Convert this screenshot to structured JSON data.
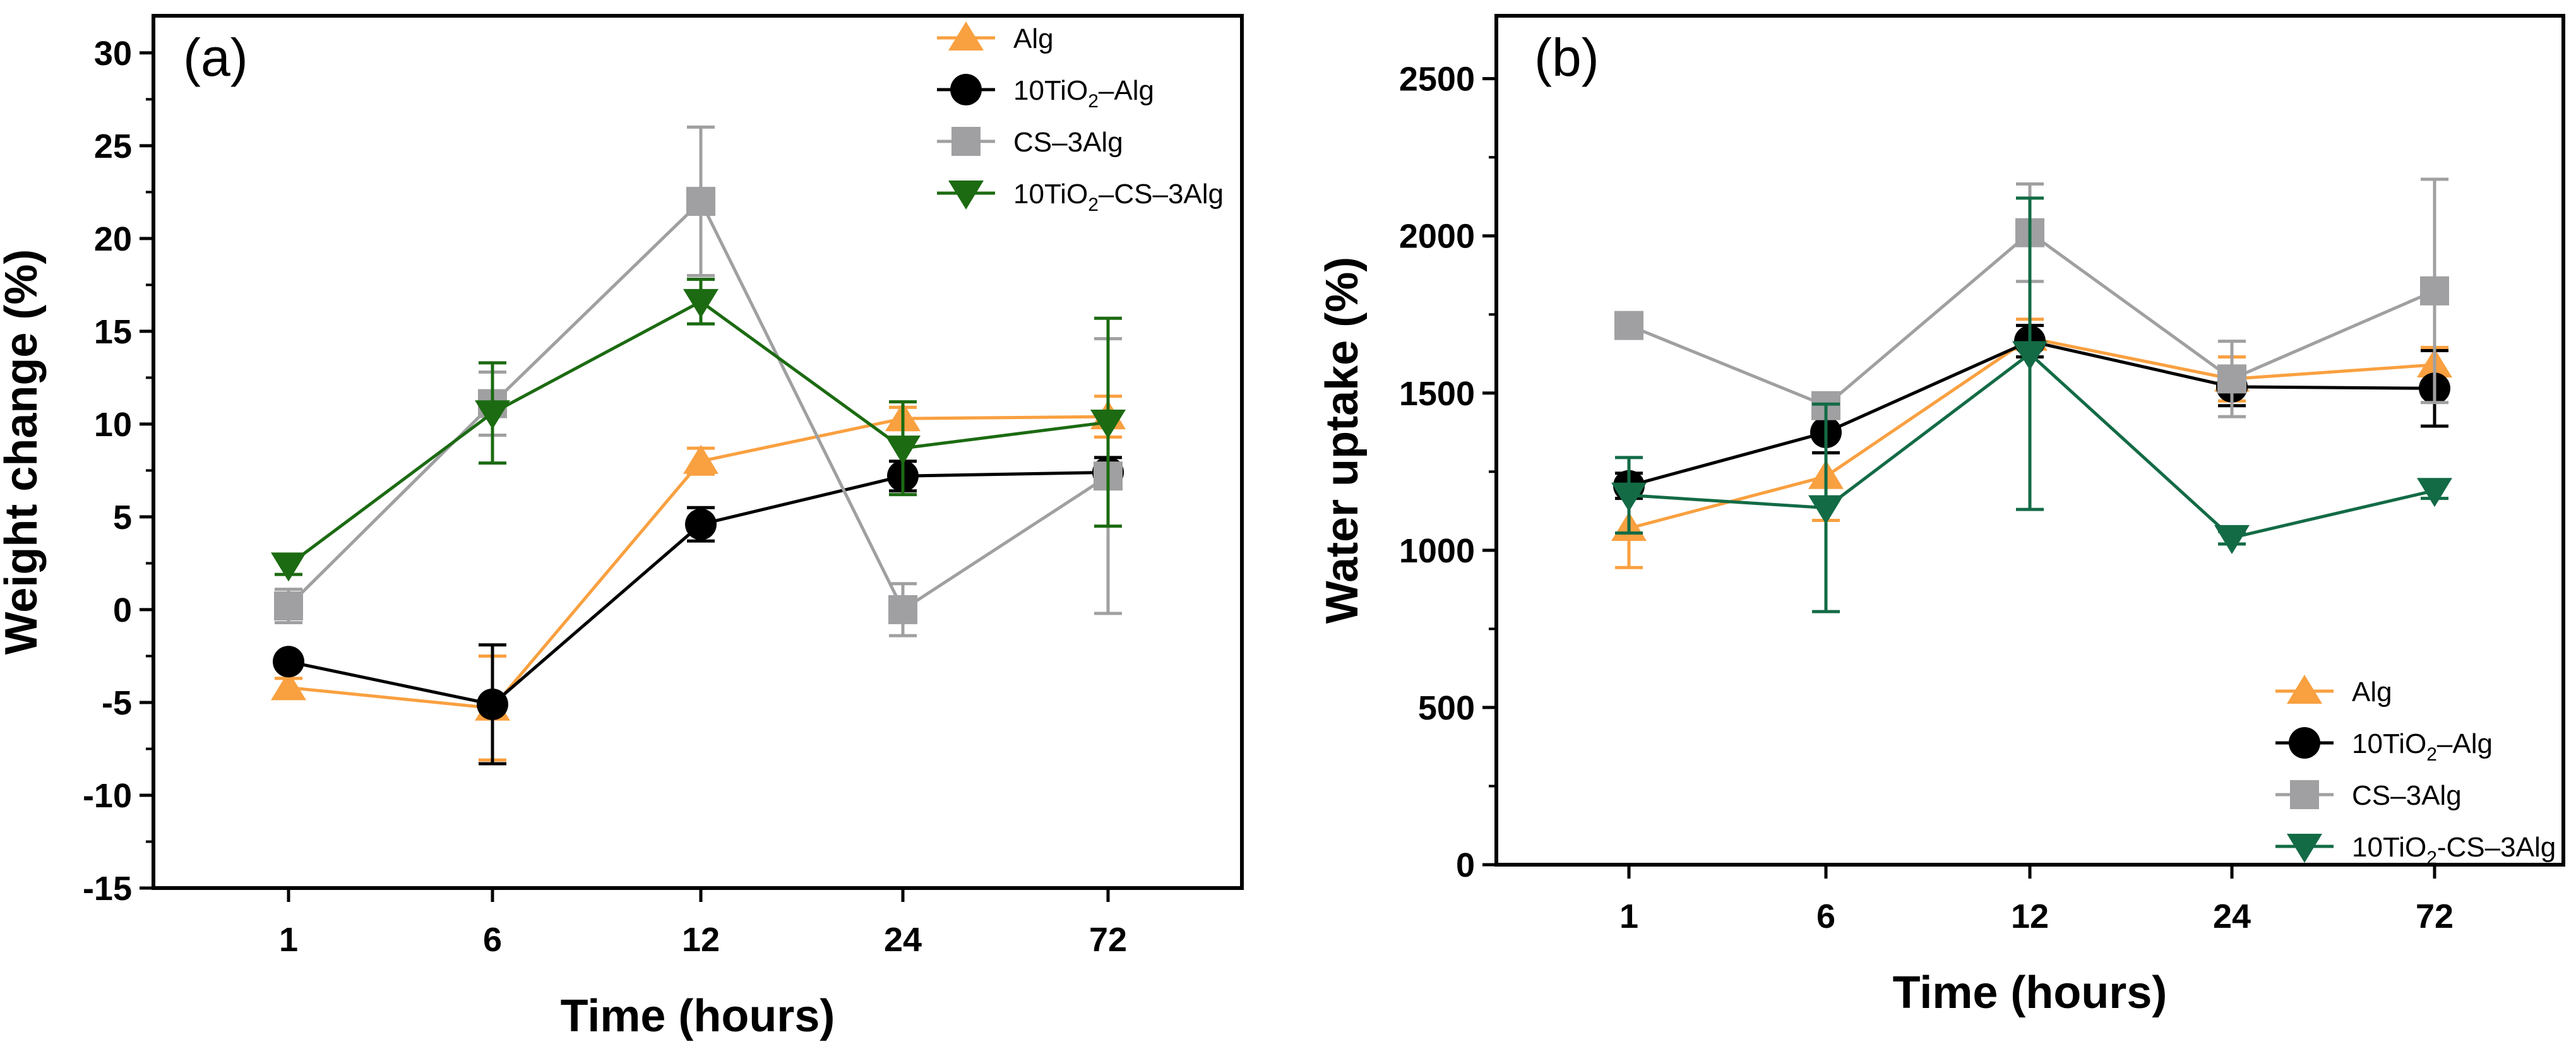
{
  "chart_data": [
    {
      "panel_label": "(a)",
      "type": "line",
      "title": "",
      "xlabel": "Time (hours)",
      "ylabel": "Weight change (%)",
      "categories": [
        "1",
        "6",
        "12",
        "24",
        "72"
      ],
      "ylim": [
        -15,
        32
      ],
      "yticks": [
        -15,
        -10,
        -5,
        0,
        5,
        10,
        15,
        20,
        25,
        30
      ],
      "ytick_labels": [
        "-15",
        "-10",
        "-5",
        "0",
        "5",
        "10",
        "15",
        "20",
        "25",
        "30"
      ],
      "grid": false,
      "legend_position": "top-right",
      "series": [
        {
          "name": "Alg",
          "sub": "",
          "legend_parts": [
            "Alg",
            "",
            ""
          ],
          "color": "#f9a040",
          "marker": "triangle-up",
          "values": [
            -4.2,
            -5.3,
            8.0,
            10.3,
            10.4
          ],
          "errors": [
            0.5,
            2.8,
            0.7,
            0.6,
            1.1
          ]
        },
        {
          "name": "10TiO2–Alg",
          "legend_parts": [
            "10TiO",
            "2",
            "–Alg"
          ],
          "color": "#000000",
          "marker": "circle",
          "values": [
            -2.8,
            -5.1,
            4.6,
            7.2,
            7.4
          ],
          "errors": [
            0.3,
            3.2,
            0.9,
            0.8,
            0.8
          ]
        },
        {
          "name": "CS–3Alg",
          "legend_parts": [
            "CS–3Alg",
            "",
            ""
          ],
          "color": "#a0a0a2",
          "marker": "square",
          "values": [
            0.2,
            11.1,
            22.0,
            0.0,
            7.2
          ],
          "errors": [
            0.9,
            1.7,
            4.0,
            1.4,
            7.4
          ]
        },
        {
          "name": "10TiO2–CS–3Alg",
          "legend_parts": [
            "10TiO",
            "2",
            "–CS–3Alg"
          ],
          "color": "#1c6b12",
          "marker": "triangle-down",
          "values": [
            2.4,
            10.6,
            16.6,
            8.7,
            10.1
          ],
          "errors": [
            0.5,
            2.7,
            1.2,
            2.5,
            5.6
          ]
        }
      ]
    },
    {
      "panel_label": "(b)",
      "type": "line",
      "title": "",
      "xlabel": "Time (hours)",
      "ylabel": "Water uptake (%)",
      "categories": [
        "1",
        "6",
        "12",
        "24",
        "72"
      ],
      "ylim": [
        0,
        2700
      ],
      "yticks": [
        0,
        500,
        1000,
        1500,
        2000,
        2500
      ],
      "ytick_labels": [
        "0",
        "500",
        "1000",
        "1500",
        "2000",
        "2500"
      ],
      "grid": false,
      "legend_position": "bottom-right",
      "series": [
        {
          "name": "Alg",
          "legend_parts": [
            "Alg",
            "",
            ""
          ],
          "color": "#f9a040",
          "marker": "triangle-up",
          "values": [
            1070,
            1235,
            1675,
            1545,
            1590
          ],
          "errors": [
            125,
            140,
            60,
            70,
            55
          ]
        },
        {
          "name": "10TiO2–Alg",
          "legend_parts": [
            "10TiO",
            "2",
            "–Alg"
          ],
          "color": "#000000",
          "marker": "circle",
          "values": [
            1205,
            1375,
            1665,
            1520,
            1515
          ],
          "errors": [
            40,
            65,
            50,
            60,
            120
          ]
        },
        {
          "name": "CS–3Alg",
          "legend_parts": [
            "CS–3Alg",
            "",
            ""
          ],
          "color": "#a0a0a2",
          "marker": "square",
          "values": [
            1715,
            1460,
            2010,
            1545,
            1825
          ],
          "errors": [
            20,
            30,
            155,
            120,
            355
          ]
        },
        {
          "name": "10TiO2-CS–3Alg",
          "legend_parts": [
            "10TiO",
            "2",
            "-CS–3Alg"
          ],
          "color": "#136b46",
          "marker": "triangle-down",
          "values": [
            1175,
            1135,
            1625,
            1040,
            1190
          ],
          "errors": [
            120,
            330,
            495,
            20,
            25
          ]
        }
      ]
    }
  ]
}
